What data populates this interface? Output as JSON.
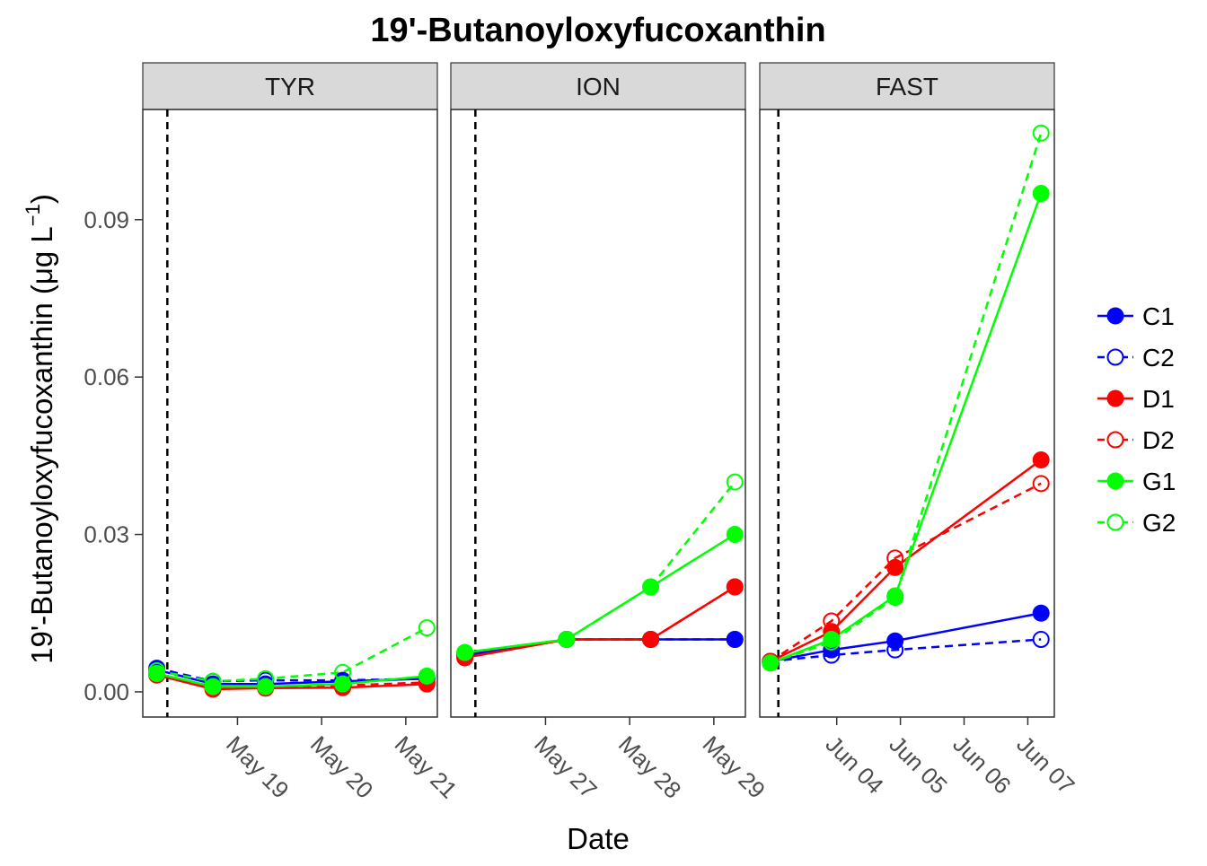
{
  "chart_data": {
    "type": "line",
    "title": "19'-Butanoyloxyfucoxanthin",
    "xlabel": "Date",
    "ylabel_main": "19'-Butanoyloxyfucoxanthin (",
    "ylabel_mu": "μ",
    "ylabel_unit": "g L",
    "ylabel_exp": "−1",
    "ylabel_close": ")",
    "ylim": [
      -0.0048,
      0.111
    ],
    "y_ticks": [
      0.0,
      0.03,
      0.06,
      0.09
    ],
    "y_tick_labels": [
      "0.00",
      "0.03",
      "0.06",
      "0.09"
    ],
    "grid": false,
    "legend_position": "right",
    "legend": [
      {
        "name": "C1",
        "color": "#0000ff",
        "filled": true,
        "dashed": false
      },
      {
        "name": "C2",
        "color": "#0000ff",
        "filled": false,
        "dashed": true
      },
      {
        "name": "D1",
        "color": "#ff0000",
        "filled": true,
        "dashed": false
      },
      {
        "name": "D2",
        "color": "#ff0000",
        "filled": false,
        "dashed": true
      },
      {
        "name": "G1",
        "color": "#00ff00",
        "filled": true,
        "dashed": false
      },
      {
        "name": "G2",
        "color": "#00ff00",
        "filled": false,
        "dashed": true
      }
    ],
    "panels": [
      {
        "label": "TYR",
        "xlim": [
          "2016-05-17 21:00",
          "2016-05-21 09:00"
        ],
        "x_ticks": [
          "2016-05-19",
          "2016-05-20",
          "2016-05-21"
        ],
        "x_tick_labels": [
          "May 19",
          "May 20",
          "May 21"
        ],
        "vline": "2016-05-18 04:00",
        "series": [
          {
            "name": "C1",
            "x": [
              "2016-05-18 01:00",
              "2016-05-18 17:00",
              "2016-05-19 08:00",
              "2016-05-20 06:00",
              "2016-05-21 06:00"
            ],
            "values": [
              0.0042,
              0.0015,
              0.0015,
              0.002,
              0.0025
            ]
          },
          {
            "name": "C2",
            "x": [
              "2016-05-18 01:00",
              "2016-05-18 17:00",
              "2016-05-19 08:00",
              "2016-05-20 06:00",
              "2016-05-21 06:00"
            ],
            "values": [
              0.0045,
              0.002,
              0.0022,
              0.0022,
              0.0025
            ]
          },
          {
            "name": "D1",
            "x": [
              "2016-05-18 01:00",
              "2016-05-18 17:00",
              "2016-05-19 08:00",
              "2016-05-20 06:00",
              "2016-05-21 06:00"
            ],
            "values": [
              0.0032,
              0.0005,
              0.0007,
              0.0008,
              0.0015
            ]
          },
          {
            "name": "D2",
            "x": [
              "2016-05-18 01:00",
              "2016-05-18 17:00",
              "2016-05-19 08:00",
              "2016-05-20 06:00",
              "2016-05-21 06:00"
            ],
            "values": [
              0.0035,
              0.0008,
              0.001,
              0.0012,
              0.0018
            ]
          },
          {
            "name": "G1",
            "x": [
              "2016-05-18 01:00",
              "2016-05-18 17:00",
              "2016-05-19 08:00",
              "2016-05-20 06:00",
              "2016-05-21 06:00"
            ],
            "values": [
              0.0035,
              0.001,
              0.001,
              0.0015,
              0.003
            ]
          },
          {
            "name": "G2",
            "x": [
              "2016-05-18 01:00",
              "2016-05-18 17:00",
              "2016-05-19 08:00",
              "2016-05-20 06:00",
              "2016-05-21 06:00"
            ],
            "values": [
              0.004,
              0.002,
              0.0025,
              0.0037,
              0.0122
            ]
          }
        ]
      },
      {
        "label": "ION",
        "xlim": [
          "2016-05-25 21:00",
          "2016-05-29 09:00"
        ],
        "x_ticks": [
          "2016-05-27",
          "2016-05-28",
          "2016-05-29"
        ],
        "x_tick_labels": [
          "May 27",
          "May 28",
          "May 29"
        ],
        "vline": "2016-05-26 04:00",
        "series": [
          {
            "name": "C1",
            "x": [
              "2016-05-26 01:00",
              "2016-05-27 06:00",
              "2016-05-28 06:00",
              "2016-05-29 06:00"
            ],
            "values": [
              0.007,
              0.01,
              0.01,
              0.01
            ]
          },
          {
            "name": "C2",
            "x": [
              "2016-05-26 01:00",
              "2016-05-27 06:00",
              "2016-05-28 06:00",
              "2016-05-29 06:00"
            ],
            "values": [
              0.007,
              0.01,
              0.01,
              0.01
            ]
          },
          {
            "name": "D1",
            "x": [
              "2016-05-26 01:00",
              "2016-05-27 06:00",
              "2016-05-28 06:00",
              "2016-05-29 06:00"
            ],
            "values": [
              0.0065,
              0.01,
              0.01,
              0.02
            ]
          },
          {
            "name": "D2",
            "x": [
              "2016-05-26 01:00",
              "2016-05-27 06:00",
              "2016-05-28 06:00",
              "2016-05-29 06:00"
            ],
            "values": [
              0.0065,
              0.01,
              0.01,
              0.02
            ]
          },
          {
            "name": "G1",
            "x": [
              "2016-05-26 01:00",
              "2016-05-27 06:00",
              "2016-05-28 06:00",
              "2016-05-29 06:00"
            ],
            "values": [
              0.0075,
              0.01,
              0.02,
              0.03
            ]
          },
          {
            "name": "G2",
            "x": [
              "2016-05-26 01:00",
              "2016-05-27 06:00",
              "2016-05-28 06:00",
              "2016-05-29 06:00"
            ],
            "values": [
              0.0075,
              0.01,
              0.02,
              0.04
            ]
          }
        ]
      },
      {
        "label": "FAST",
        "xlim": [
          "2016-06-02 19:00",
          "2016-06-07 10:00"
        ],
        "x_ticks": [
          "2016-06-04",
          "2016-06-05",
          "2016-06-06",
          "2016-06-07"
        ],
        "x_tick_labels": [
          "Jun 04",
          "Jun 05",
          "Jun 06",
          "Jun 07"
        ],
        "vline": "2016-06-03 02:00",
        "series": [
          {
            "name": "C1",
            "x": [
              "2016-06-02 23:00",
              "2016-06-03 22:00",
              "2016-06-04 22:00",
              "2016-06-07 05:00"
            ],
            "values": [
              0.0058,
              0.008,
              0.0097,
              0.015
            ]
          },
          {
            "name": "C2",
            "x": [
              "2016-06-02 23:00",
              "2016-06-03 22:00",
              "2016-06-04 22:00",
              "2016-06-07 05:00"
            ],
            "values": [
              0.0058,
              0.007,
              0.008,
              0.01
            ]
          },
          {
            "name": "D1",
            "x": [
              "2016-06-02 23:00",
              "2016-06-03 22:00",
              "2016-06-04 22:00",
              "2016-06-07 05:00"
            ],
            "values": [
              0.0058,
              0.0115,
              0.0237,
              0.0442
            ]
          },
          {
            "name": "D2",
            "x": [
              "2016-06-02 23:00",
              "2016-06-03 22:00",
              "2016-06-04 22:00",
              "2016-06-07 05:00"
            ],
            "values": [
              0.0058,
              0.0135,
              0.0255,
              0.0397
            ]
          },
          {
            "name": "G1",
            "x": [
              "2016-06-02 23:00",
              "2016-06-03 22:00",
              "2016-06-04 22:00",
              "2016-06-07 05:00"
            ],
            "values": [
              0.0055,
              0.01,
              0.0183,
              0.095
            ]
          },
          {
            "name": "G2",
            "x": [
              "2016-06-02 23:00",
              "2016-06-03 22:00",
              "2016-06-04 22:00",
              "2016-06-07 05:00"
            ],
            "values": [
              0.0055,
              0.0095,
              0.018,
              0.1065
            ]
          }
        ]
      }
    ]
  }
}
